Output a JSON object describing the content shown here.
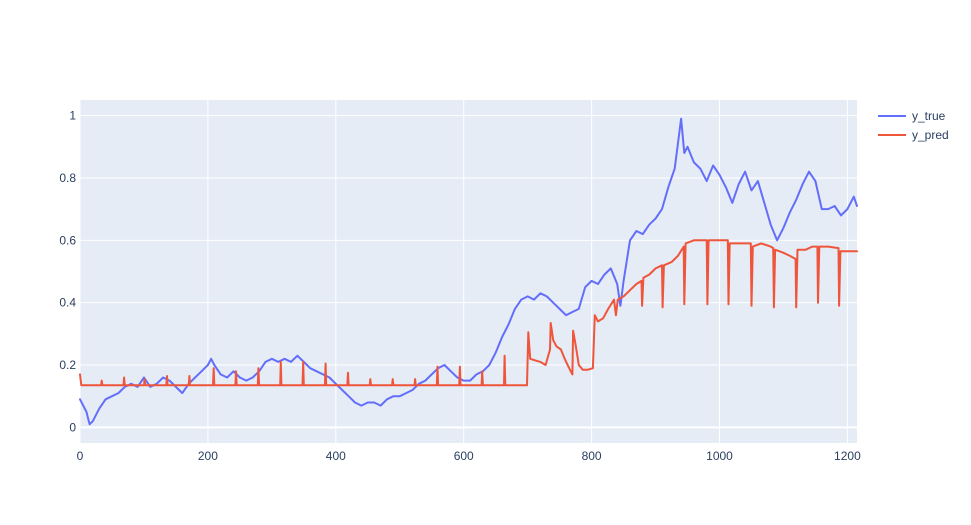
{
  "chart_data": {
    "type": "line",
    "title": "",
    "xlabel": "",
    "ylabel": "",
    "xlim": [
      0,
      1215
    ],
    "ylim": [
      -0.05,
      1.05
    ],
    "x_ticks": [
      0,
      200,
      400,
      600,
      800,
      1000,
      1200
    ],
    "y_ticks": [
      0,
      0.2,
      0.4,
      0.6,
      0.8,
      1
    ],
    "x_tick_labels": [
      "0",
      "200",
      "400",
      "600",
      "800",
      "1000",
      "1200"
    ],
    "y_tick_labels": [
      "0",
      "0.2",
      "0.4",
      "0.6",
      "0.8",
      "1"
    ],
    "grid": true,
    "legend_position": "top-right",
    "colors": {
      "plot_bg": "#e5ecf6",
      "grid": "#ffffff",
      "axis_text": "#2a3f5f"
    },
    "series": [
      {
        "name": "y_true",
        "color": "#636efa",
        "points": [
          [
            0,
            0.09
          ],
          [
            5,
            0.07
          ],
          [
            10,
            0.05
          ],
          [
            15,
            0.01
          ],
          [
            20,
            0.02
          ],
          [
            30,
            0.06
          ],
          [
            40,
            0.09
          ],
          [
            50,
            0.1
          ],
          [
            60,
            0.11
          ],
          [
            70,
            0.13
          ],
          [
            80,
            0.14
          ],
          [
            90,
            0.13
          ],
          [
            100,
            0.16
          ],
          [
            110,
            0.13
          ],
          [
            120,
            0.14
          ],
          [
            130,
            0.16
          ],
          [
            140,
            0.15
          ],
          [
            150,
            0.13
          ],
          [
            160,
            0.11
          ],
          [
            170,
            0.14
          ],
          [
            180,
            0.16
          ],
          [
            190,
            0.18
          ],
          [
            200,
            0.2
          ],
          [
            205,
            0.22
          ],
          [
            210,
            0.2
          ],
          [
            220,
            0.17
          ],
          [
            230,
            0.16
          ],
          [
            240,
            0.18
          ],
          [
            250,
            0.16
          ],
          [
            260,
            0.15
          ],
          [
            270,
            0.16
          ],
          [
            280,
            0.18
          ],
          [
            290,
            0.21
          ],
          [
            300,
            0.22
          ],
          [
            310,
            0.21
          ],
          [
            320,
            0.22
          ],
          [
            330,
            0.21
          ],
          [
            340,
            0.23
          ],
          [
            350,
            0.21
          ],
          [
            360,
            0.19
          ],
          [
            370,
            0.18
          ],
          [
            380,
            0.17
          ],
          [
            390,
            0.16
          ],
          [
            400,
            0.14
          ],
          [
            410,
            0.12
          ],
          [
            420,
            0.1
          ],
          [
            430,
            0.08
          ],
          [
            440,
            0.07
          ],
          [
            450,
            0.08
          ],
          [
            460,
            0.08
          ],
          [
            470,
            0.07
          ],
          [
            480,
            0.09
          ],
          [
            490,
            0.1
          ],
          [
            500,
            0.1
          ],
          [
            510,
            0.11
          ],
          [
            520,
            0.12
          ],
          [
            530,
            0.14
          ],
          [
            540,
            0.15
          ],
          [
            550,
            0.17
          ],
          [
            560,
            0.19
          ],
          [
            570,
            0.2
          ],
          [
            580,
            0.18
          ],
          [
            590,
            0.16
          ],
          [
            600,
            0.15
          ],
          [
            610,
            0.15
          ],
          [
            620,
            0.17
          ],
          [
            630,
            0.18
          ],
          [
            640,
            0.2
          ],
          [
            650,
            0.24
          ],
          [
            660,
            0.29
          ],
          [
            670,
            0.33
          ],
          [
            680,
            0.38
          ],
          [
            690,
            0.41
          ],
          [
            700,
            0.42
          ],
          [
            710,
            0.41
          ],
          [
            720,
            0.43
          ],
          [
            730,
            0.42
          ],
          [
            740,
            0.4
          ],
          [
            750,
            0.38
          ],
          [
            760,
            0.36
          ],
          [
            770,
            0.37
          ],
          [
            780,
            0.38
          ],
          [
            790,
            0.45
          ],
          [
            800,
            0.47
          ],
          [
            810,
            0.46
          ],
          [
            820,
            0.49
          ],
          [
            830,
            0.51
          ],
          [
            840,
            0.46
          ],
          [
            845,
            0.39
          ],
          [
            850,
            0.47
          ],
          [
            860,
            0.6
          ],
          [
            870,
            0.63
          ],
          [
            880,
            0.62
          ],
          [
            890,
            0.65
          ],
          [
            900,
            0.67
          ],
          [
            910,
            0.7
          ],
          [
            920,
            0.77
          ],
          [
            930,
            0.83
          ],
          [
            935,
            0.91
          ],
          [
            940,
            0.99
          ],
          [
            945,
            0.88
          ],
          [
            950,
            0.9
          ],
          [
            960,
            0.85
          ],
          [
            970,
            0.83
          ],
          [
            980,
            0.79
          ],
          [
            990,
            0.84
          ],
          [
            1000,
            0.81
          ],
          [
            1010,
            0.77
          ],
          [
            1020,
            0.72
          ],
          [
            1030,
            0.78
          ],
          [
            1040,
            0.82
          ],
          [
            1050,
            0.76
          ],
          [
            1060,
            0.79
          ],
          [
            1070,
            0.72
          ],
          [
            1080,
            0.65
          ],
          [
            1090,
            0.6
          ],
          [
            1100,
            0.64
          ],
          [
            1110,
            0.69
          ],
          [
            1120,
            0.73
          ],
          [
            1130,
            0.78
          ],
          [
            1140,
            0.82
          ],
          [
            1150,
            0.79
          ],
          [
            1160,
            0.7
          ],
          [
            1170,
            0.7
          ],
          [
            1180,
            0.71
          ],
          [
            1190,
            0.68
          ],
          [
            1200,
            0.7
          ],
          [
            1210,
            0.74
          ],
          [
            1215,
            0.71
          ]
        ]
      },
      {
        "name": "y_pred",
        "color": "#ef553b",
        "points": [
          [
            0,
            0.17
          ],
          [
            2,
            0.135
          ],
          [
            33,
            0.135
          ],
          [
            34,
            0.15
          ],
          [
            35,
            0.135
          ],
          [
            68,
            0.135
          ],
          [
            69,
            0.16
          ],
          [
            70,
            0.135
          ],
          [
            100,
            0.135
          ],
          [
            101,
            0.155
          ],
          [
            102,
            0.135
          ],
          [
            135,
            0.135
          ],
          [
            136,
            0.165
          ],
          [
            137,
            0.135
          ],
          [
            170,
            0.135
          ],
          [
            171,
            0.165
          ],
          [
            172,
            0.135
          ],
          [
            208,
            0.135
          ],
          [
            209,
            0.19
          ],
          [
            210,
            0.135
          ],
          [
            243,
            0.135
          ],
          [
            244,
            0.18
          ],
          [
            245,
            0.135
          ],
          [
            278,
            0.135
          ],
          [
            279,
            0.19
          ],
          [
            280,
            0.135
          ],
          [
            313,
            0.135
          ],
          [
            314,
            0.21
          ],
          [
            315,
            0.135
          ],
          [
            348,
            0.135
          ],
          [
            349,
            0.21
          ],
          [
            350,
            0.135
          ],
          [
            383,
            0.135
          ],
          [
            384,
            0.205
          ],
          [
            385,
            0.135
          ],
          [
            418,
            0.135
          ],
          [
            419,
            0.175
          ],
          [
            420,
            0.135
          ],
          [
            453,
            0.135
          ],
          [
            454,
            0.155
          ],
          [
            455,
            0.135
          ],
          [
            488,
            0.135
          ],
          [
            489,
            0.155
          ],
          [
            490,
            0.135
          ],
          [
            523,
            0.135
          ],
          [
            524,
            0.155
          ],
          [
            525,
            0.135
          ],
          [
            558,
            0.135
          ],
          [
            559,
            0.195
          ],
          [
            560,
            0.135
          ],
          [
            593,
            0.135
          ],
          [
            594,
            0.195
          ],
          [
            595,
            0.135
          ],
          [
            628,
            0.135
          ],
          [
            629,
            0.18
          ],
          [
            630,
            0.135
          ],
          [
            663,
            0.135
          ],
          [
            664,
            0.23
          ],
          [
            665,
            0.135
          ],
          [
            698,
            0.135
          ],
          [
            699,
            0.135
          ],
          [
            701,
            0.305
          ],
          [
            704,
            0.22
          ],
          [
            712,
            0.215
          ],
          [
            720,
            0.21
          ],
          [
            728,
            0.2
          ],
          [
            735,
            0.25
          ],
          [
            736,
            0.335
          ],
          [
            740,
            0.28
          ],
          [
            745,
            0.26
          ],
          [
            752,
            0.25
          ],
          [
            758,
            0.22
          ],
          [
            765,
            0.19
          ],
          [
            770,
            0.17
          ],
          [
            771,
            0.31
          ],
          [
            775,
            0.265
          ],
          [
            780,
            0.2
          ],
          [
            786,
            0.185
          ],
          [
            794,
            0.185
          ],
          [
            802,
            0.19
          ],
          [
            805,
            0.36
          ],
          [
            810,
            0.34
          ],
          [
            818,
            0.35
          ],
          [
            826,
            0.38
          ],
          [
            835,
            0.41
          ],
          [
            838,
            0.36
          ],
          [
            841,
            0.41
          ],
          [
            850,
            0.42
          ],
          [
            860,
            0.44
          ],
          [
            870,
            0.46
          ],
          [
            878,
            0.47
          ],
          [
            879,
            0.39
          ],
          [
            881,
            0.48
          ],
          [
            890,
            0.49
          ],
          [
            900,
            0.51
          ],
          [
            910,
            0.52
          ],
          [
            911,
            0.385
          ],
          [
            913,
            0.52
          ],
          [
            925,
            0.53
          ],
          [
            935,
            0.55
          ],
          [
            944,
            0.58
          ],
          [
            945,
            0.395
          ],
          [
            947,
            0.59
          ],
          [
            960,
            0.6
          ],
          [
            975,
            0.6
          ],
          [
            980,
            0.6
          ],
          [
            981,
            0.395
          ],
          [
            983,
            0.6
          ],
          [
            995,
            0.6
          ],
          [
            1010,
            0.6
          ],
          [
            1013,
            0.6
          ],
          [
            1014,
            0.395
          ],
          [
            1016,
            0.59
          ],
          [
            1030,
            0.59
          ],
          [
            1049,
            0.59
          ],
          [
            1050,
            0.39
          ],
          [
            1052,
            0.58
          ],
          [
            1065,
            0.59
          ],
          [
            1080,
            0.58
          ],
          [
            1084,
            0.575
          ],
          [
            1085,
            0.385
          ],
          [
            1087,
            0.57
          ],
          [
            1100,
            0.56
          ],
          [
            1110,
            0.55
          ],
          [
            1119,
            0.54
          ],
          [
            1120,
            0.385
          ],
          [
            1122,
            0.57
          ],
          [
            1135,
            0.57
          ],
          [
            1145,
            0.58
          ],
          [
            1153,
            0.58
          ],
          [
            1154,
            0.4
          ],
          [
            1156,
            0.58
          ],
          [
            1170,
            0.58
          ],
          [
            1186,
            0.575
          ],
          [
            1187,
            0.39
          ],
          [
            1189,
            0.565
          ],
          [
            1200,
            0.565
          ],
          [
            1215,
            0.565
          ]
        ]
      }
    ]
  }
}
